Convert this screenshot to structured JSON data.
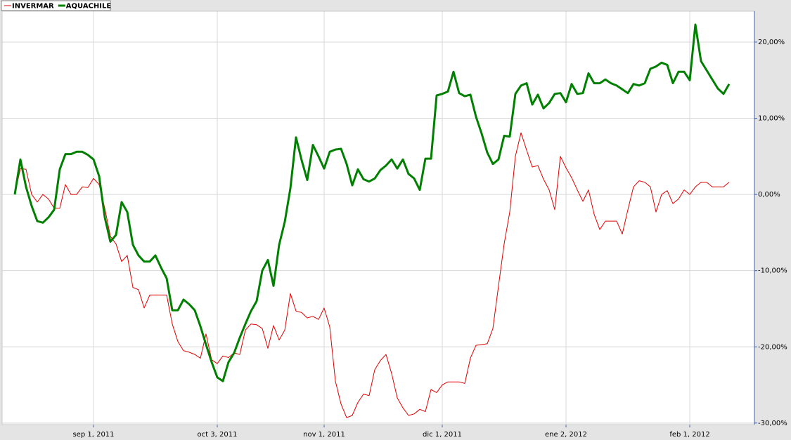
{
  "chart_data": {
    "type": "line",
    "categories": [
      null,
      null,
      null,
      null,
      null,
      null,
      null,
      null,
      null,
      null,
      null,
      null,
      null,
      null,
      "sep 1, 2011",
      null,
      null,
      null,
      null,
      null,
      null,
      null,
      null,
      null,
      null,
      null,
      null,
      null,
      null,
      null,
      null,
      null,
      null,
      null,
      null,
      null,
      "oct 3, 2011",
      null,
      null,
      null,
      null,
      null,
      null,
      null,
      null,
      null,
      null,
      null,
      null,
      null,
      null,
      null,
      null,
      null,
      null,
      "nov 1, 2011",
      null,
      null,
      null,
      null,
      null,
      null,
      null,
      null,
      null,
      null,
      null,
      null,
      null,
      null,
      null,
      null,
      null,
      null,
      null,
      null,
      "dic 1, 2011",
      null,
      null,
      null,
      null,
      null,
      null,
      null,
      null,
      null,
      null,
      null,
      null,
      null,
      null,
      null,
      null,
      null,
      null,
      null,
      null,
      null,
      "ene 2, 2012",
      null,
      null,
      null,
      null,
      null,
      null,
      null,
      null,
      null,
      null,
      null,
      null,
      null,
      null,
      null,
      null,
      null,
      null,
      null,
      null,
      null,
      "feb 1, 2012",
      null,
      null,
      null,
      null,
      null,
      null,
      null
    ],
    "series": [
      {
        "name": "INVERMAR",
        "color": "#e00000",
        "values": [
          0,
          3.4,
          3.3,
          0,
          -1.0,
          0,
          -0.6,
          -1.8,
          -1.8,
          1.3,
          0,
          0,
          1.0,
          0.9,
          2.1,
          1.3,
          -1.8,
          -5.5,
          -6.5,
          -8.8,
          -8.0,
          -12.2,
          -12.5,
          -14.9,
          -13.2,
          -13.2,
          -13.2,
          -13.2,
          -17.0,
          -19.3,
          -20.5,
          -20.7,
          -21.0,
          -21.5,
          -18.3,
          -21.7,
          -22.2,
          -21.2,
          -21.4,
          -20.8,
          -21.0,
          -17.8,
          -17.0,
          -17.1,
          -17.6,
          -20.2,
          -17.2,
          -19.1,
          -17.8,
          -13.0,
          -15.3,
          -15.5,
          -16.2,
          -16.0,
          -16.4,
          -14.9,
          -17.4,
          -24.5,
          -27.5,
          -29.3,
          -29.0,
          -27.3,
          -26.2,
          -26.4,
          -23.0,
          -21.8,
          -21.0,
          -23.5,
          -26.7,
          -28.0,
          -29.0,
          -28.8,
          -28.2,
          -28.5,
          -25.6,
          -26.0,
          -25.0,
          -24.6,
          -24.6,
          -24.6,
          -24.8,
          -21.5,
          -19.8,
          -19.7,
          -19.6,
          -17.6,
          -12.0,
          -6.5,
          -2.3,
          5.0,
          8.1,
          5.8,
          3.6,
          3.8,
          2.0,
          0.6,
          -2.0,
          5.0,
          3.5,
          2.2,
          0.6,
          -0.9,
          0.6,
          -2.6,
          -4.6,
          -3.5,
          -3.5,
          -3.5,
          -5.2,
          -2.0,
          1.0,
          1.8,
          1.6,
          1.0,
          -2.3,
          0,
          0.5,
          -1.2,
          -0.6,
          0.6,
          0,
          1.0,
          1.6,
          1.6,
          1.0,
          1.0,
          1.0,
          1.6
        ]
      },
      {
        "name": "AQUACHILE",
        "color": "#008000",
        "values": [
          0,
          4.6,
          1.0,
          -1.5,
          -3.5,
          -3.7,
          -3.0,
          -2.0,
          3.3,
          5.3,
          5.3,
          5.6,
          5.6,
          5.2,
          4.6,
          2.4,
          -3.0,
          -6.2,
          -5.3,
          -1.0,
          -2.3,
          -6.6,
          -8.0,
          -8.8,
          -8.8,
          -8.0,
          -9.6,
          -11.0,
          -15.2,
          -15.2,
          -13.8,
          -14.4,
          -15.2,
          -17.3,
          -19.7,
          -22.0,
          -24.0,
          -24.5,
          -22.0,
          -20.8,
          -18.8,
          -17.0,
          -15.3,
          -14.0,
          -10.0,
          -8.6,
          -12.0,
          -6.6,
          -3.6,
          0.8,
          7.5,
          4.5,
          1.9,
          6.5,
          5.0,
          3.4,
          5.6,
          5.9,
          6.0,
          4.0,
          1.2,
          3.3,
          2.0,
          1.7,
          2.1,
          3.2,
          3.8,
          4.6,
          3.4,
          4.6,
          2.7,
          2.1,
          0.6,
          4.7,
          4.7,
          13.0,
          13.2,
          13.5,
          16.1,
          13.3,
          12.9,
          13.1,
          10.2,
          8.0,
          5.5,
          4.0,
          4.6,
          7.7,
          7.6,
          13.2,
          14.3,
          14.6,
          11.8,
          13.1,
          11.3,
          12.0,
          13.2,
          13.3,
          12.1,
          14.5,
          13.2,
          13.3,
          15.9,
          14.6,
          14.6,
          15.1,
          14.6,
          14.3,
          13.8,
          13.3,
          14.5,
          14.3,
          14.6,
          16.5,
          16.8,
          17.3,
          17.0,
          14.6,
          16.1,
          16.1,
          15.0,
          22.3,
          17.5,
          16.3,
          15.1,
          13.9,
          13.2,
          14.5
        ]
      }
    ],
    "ylim": [
      -30.2,
      24.05
    ],
    "yticks": [
      {
        "value": -30,
        "label": "-30,00%"
      },
      {
        "value": -20,
        "label": "-20,00%"
      },
      {
        "value": -10,
        "label": "-10,00%"
      },
      {
        "value": 0,
        "label": "0,00%"
      },
      {
        "value": 10,
        "label": "10,00%"
      },
      {
        "value": 20,
        "label": "20,00%"
      }
    ],
    "grid": true,
    "legend": "top-left"
  }
}
